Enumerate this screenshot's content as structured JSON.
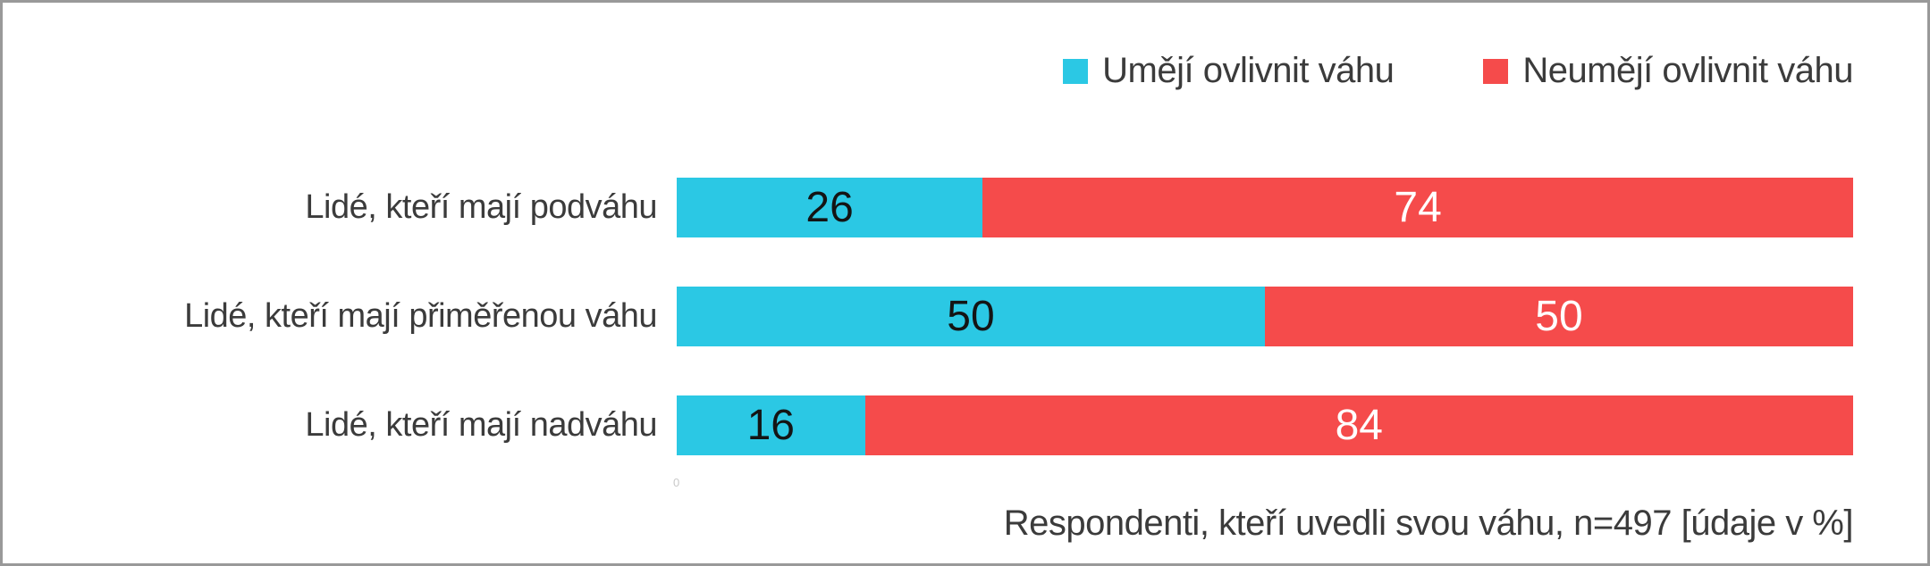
{
  "colors": {
    "frame_border": "#999999",
    "background": "#ffffff",
    "text": "#3b3b3b",
    "series_umeji": "#2bc8e4",
    "series_neumeji": "#f54b4b"
  },
  "chart_data": {
    "type": "bar",
    "orientation": "horizontal",
    "stacked": true,
    "title": "",
    "categories": [
      "Lidé, kteří mají podváhu",
      "Lidé, kteří mají přiměřenou váhu",
      "Lidé, kteří mají nadváhu"
    ],
    "series": [
      {
        "name": "Umějí ovlivnit váhu",
        "color": "#2bc8e4",
        "label_color": "#141414",
        "values": [
          26,
          50,
          16
        ]
      },
      {
        "name": "Neumějí ovlivnit váhu",
        "color": "#f54b4b",
        "label_color": "#ffffff",
        "values": [
          74,
          50,
          84
        ]
      }
    ],
    "xlim": [
      0,
      100
    ],
    "unit": "%",
    "grid": false,
    "legend_position": "top-right",
    "data_labels": "inside-center",
    "axis_origin_label": "0",
    "footnote": "Respondenti, kteří uvedli svou váhu, n=497 [údaje v %]"
  }
}
